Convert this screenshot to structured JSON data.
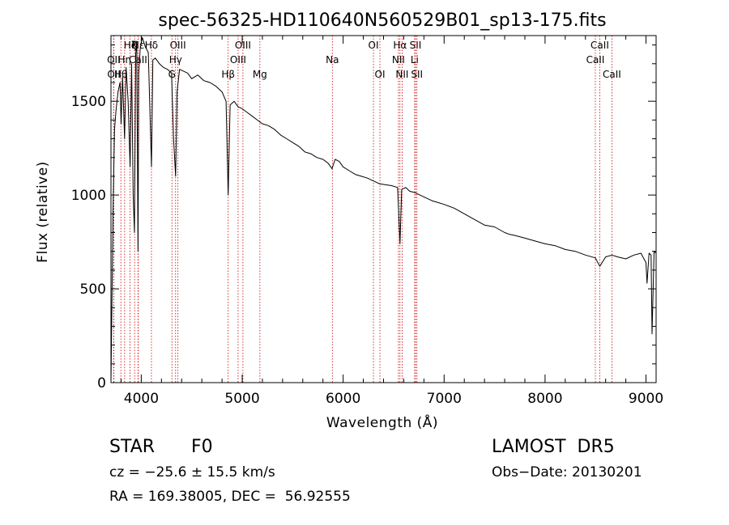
{
  "chart_data": {
    "type": "line",
    "title": "spec-56325-HD110640N560529B01_sp13-175.fits",
    "xlabel": "Wavelength (Å)",
    "ylabel": "Flux (relative)",
    "xlim": [
      3700,
      9100
    ],
    "ylim": [
      0,
      1850
    ],
    "xticks": [
      4000,
      5000,
      6000,
      7000,
      8000,
      9000
    ],
    "yticks": [
      0,
      500,
      1000,
      1500
    ],
    "grid": false,
    "series": [
      {
        "x": [
          3700,
          3720,
          3735,
          3750,
          3770,
          3790,
          3800,
          3815,
          3835,
          3850,
          3870,
          3889,
          3905,
          3920,
          3933,
          3945,
          3955,
          3968,
          3975,
          3990,
          4010,
          4040,
          4070,
          4101,
          4115,
          4140,
          4180,
          4220,
          4260,
          4300,
          4320,
          4340,
          4355,
          4380,
          4420,
          4460,
          4500,
          4560,
          4620,
          4680,
          4740,
          4800,
          4840,
          4861,
          4880,
          4920,
          4960,
          5000,
          5050,
          5100,
          5150,
          5200,
          5260,
          5320,
          5380,
          5440,
          5500,
          5560,
          5620,
          5680,
          5740,
          5800,
          5850,
          5890,
          5920,
          5960,
          6000,
          6060,
          6120,
          6180,
          6240,
          6300,
          6360,
          6420,
          6480,
          6540,
          6563,
          6580,
          6620,
          6660,
          6700,
          6760,
          6820,
          6880,
          6940,
          7000,
          7100,
          7200,
          7300,
          7400,
          7500,
          7600,
          7650,
          7700,
          7800,
          7900,
          8000,
          8100,
          8200,
          8300,
          8400,
          8498,
          8542,
          8600,
          8662,
          8720,
          8800,
          8880,
          8950,
          9000,
          9010,
          9030,
          9050,
          9060,
          9080,
          9100
        ],
        "y": [
          0,
          900,
          1350,
          1450,
          1550,
          1600,
          1380,
          1630,
          1300,
          1680,
          1500,
          1150,
          1700,
          1000,
          800,
          1750,
          1820,
          700,
          1650,
          1780,
          1840,
          1790,
          1760,
          1150,
          1720,
          1730,
          1700,
          1680,
          1670,
          1650,
          1300,
          1100,
          1550,
          1670,
          1660,
          1650,
          1620,
          1640,
          1610,
          1600,
          1580,
          1550,
          1500,
          1000,
          1480,
          1500,
          1470,
          1460,
          1440,
          1420,
          1400,
          1380,
          1370,
          1350,
          1320,
          1300,
          1280,
          1260,
          1230,
          1220,
          1200,
          1190,
          1170,
          1140,
          1190,
          1180,
          1150,
          1130,
          1110,
          1100,
          1090,
          1075,
          1060,
          1055,
          1050,
          1040,
          740,
          1030,
          1040,
          1020,
          1015,
          1000,
          985,
          970,
          960,
          950,
          930,
          900,
          870,
          840,
          830,
          800,
          790,
          785,
          770,
          755,
          740,
          730,
          710,
          700,
          680,
          665,
          620,
          670,
          680,
          670,
          660,
          680,
          690,
          640,
          530,
          690,
          680,
          260,
          700,
          690
        ]
      }
    ],
    "line_markers": [
      {
        "label": "Hδ",
        "x": 4101,
        "row": 0
      },
      {
        "label": "K",
        "x": 3934,
        "row": 0
      },
      {
        "label": "Hε",
        "x": 3970,
        "row": 0
      },
      {
        "label": "Hζ",
        "x": 3889,
        "row": 0
      },
      {
        "label": "OIII",
        "x": 4363,
        "row": 0
      },
      {
        "label": "OII",
        "x": 3727,
        "row": 1
      },
      {
        "label": "Hη",
        "x": 3835,
        "row": 1
      },
      {
        "label": "CaII",
        "x": 3968,
        "row": 1
      },
      {
        "label": "OII",
        "x": 3729,
        "row": 2
      },
      {
        "label": "Hθ",
        "x": 3798,
        "row": 2
      },
      {
        "label": "Hγ",
        "x": 4340,
        "row": 1
      },
      {
        "label": "G",
        "x": 4304,
        "row": 2
      },
      {
        "label": "Hβ",
        "x": 4861,
        "row": 2
      },
      {
        "label": "OIII",
        "x": 5007,
        "row": 0
      },
      {
        "label": "OIII",
        "x": 4959,
        "row": 1
      },
      {
        "label": "Mg",
        "x": 5175,
        "row": 2
      },
      {
        "label": "Na",
        "x": 5893,
        "row": 1
      },
      {
        "label": "OI",
        "x": 6300,
        "row": 0
      },
      {
        "label": "OI",
        "x": 6364,
        "row": 2
      },
      {
        "label": "Hα",
        "x": 6563,
        "row": 0
      },
      {
        "label": "NII",
        "x": 6548,
        "row": 1
      },
      {
        "label": "NII",
        "x": 6584,
        "row": 2
      },
      {
        "label": "SII",
        "x": 6717,
        "row": 0
      },
      {
        "label": "Li",
        "x": 6708,
        "row": 1
      },
      {
        "label": "SII",
        "x": 6731,
        "row": 2
      },
      {
        "label": "CaII",
        "x": 8542,
        "row": 0
      },
      {
        "label": "CaII",
        "x": 8498,
        "row": 1
      },
      {
        "label": "CaII",
        "x": 8662,
        "row": 2
      }
    ]
  },
  "info": {
    "class_label": "STAR",
    "subclass": "F0",
    "survey": "LAMOST  DR5",
    "cz": "cz = −25.6 ± 15.5 km/s",
    "obs_date": "Obs−Date: 20130201",
    "coords": "RA = 169.38005, DEC =  56.92555"
  },
  "colors": {
    "spectrum": "#000000",
    "marker_lines": "#cc0000",
    "background": "#ffffff"
  }
}
